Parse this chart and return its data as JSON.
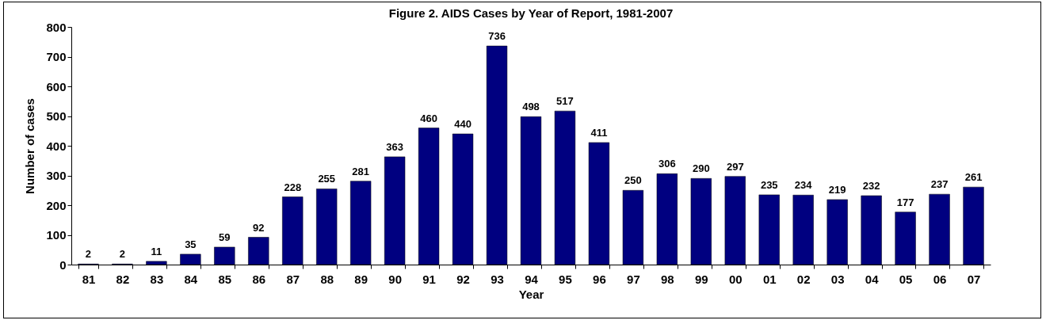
{
  "chart_data": {
    "type": "bar",
    "title": "Figure 2. AIDS Cases by Year of Report, 1981-2007",
    "xlabel": "Year",
    "ylabel": "Number of cases",
    "categories": [
      "81",
      "82",
      "83",
      "84",
      "85",
      "86",
      "87",
      "88",
      "89",
      "90",
      "91",
      "92",
      "93",
      "94",
      "95",
      "96",
      "97",
      "98",
      "99",
      "00",
      "01",
      "02",
      "03",
      "04",
      "05",
      "06",
      "07"
    ],
    "values": [
      2,
      2,
      11,
      35,
      59,
      92,
      228,
      255,
      281,
      363,
      460,
      440,
      736,
      498,
      517,
      411,
      250,
      306,
      290,
      297,
      235,
      234,
      219,
      232,
      177,
      237,
      261
    ],
    "color": "#000080",
    "ylim": [
      0,
      800
    ],
    "yticks": [
      0,
      100,
      200,
      300,
      400,
      500,
      600,
      700,
      800
    ],
    "grid": false,
    "data_labels": true
  }
}
